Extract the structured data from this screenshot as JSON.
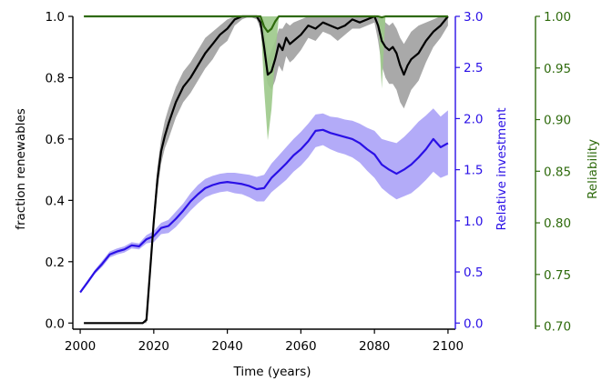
{
  "chart_data": {
    "type": "line",
    "xlabel": "Time (years)",
    "ylabel_left": "fraction renewables",
    "ylabel_right1": "Relative investment",
    "ylabel_right2": "Reliability",
    "xlim": [
      1998,
      2102
    ],
    "ylim_left": [
      -0.02,
      1.0
    ],
    "ylim_right1": [
      -0.06,
      3.0
    ],
    "ylim_right2": [
      0.697,
      1.0
    ],
    "x_ticks": [
      2000,
      2020,
      2040,
      2060,
      2080,
      2100
    ],
    "y_ticks_left": [
      0.0,
      0.2,
      0.4,
      0.6,
      0.8,
      1.0
    ],
    "y_ticks_right1": [
      0.0,
      0.5,
      1.0,
      1.5,
      2.0,
      2.5,
      3.0
    ],
    "y_ticks_right2": [
      0.7,
      0.75,
      0.8,
      0.85,
      0.9,
      0.95,
      1.0
    ],
    "x_tick_labels": [
      "2000",
      "2020",
      "2040",
      "2060",
      "2080",
      "2100"
    ],
    "y_tick_labels_left": [
      "0.0",
      "0.2",
      "0.4",
      "0.6",
      "0.8",
      "1.0"
    ],
    "y_tick_labels_right1": [
      "0.0",
      "0.5",
      "1.0",
      "1.5",
      "2.0",
      "2.5",
      "3.0"
    ],
    "y_tick_labels_right2": [
      "0.70",
      "0.75",
      "0.80",
      "0.85",
      "0.90",
      "0.95",
      "1.00"
    ],
    "colors": {
      "renewables": "#000000",
      "investment": "#2a10e6",
      "investment_band": "#a69cf7",
      "renewables_band": "#8c8c8c",
      "reliability": "#2e6a0c",
      "reliability_band": "#9cc98a"
    },
    "series": [
      {
        "axis": "left",
        "x": [
          2001,
          2017,
          2018,
          2019,
          2020,
          2021,
          2022,
          2023,
          2024,
          2026,
          2028,
          2030,
          2032,
          2034,
          2036,
          2038,
          2040,
          2042,
          2044,
          2046,
          2048,
          2049,
          2050,
          2051,
          2052,
          2053,
          2054,
          2055,
          2056,
          2057,
          2058,
          2060,
          2062,
          2064,
          2066,
          2068,
          2070,
          2072,
          2074,
          2076,
          2078,
          2080,
          2081,
          2082,
          2083,
          2084,
          2085,
          2086,
          2087,
          2088,
          2089,
          2090,
          2092,
          2094,
          2096,
          2098,
          2100
        ],
        "values": [
          0.0,
          0.0,
          0.01,
          0.17,
          0.33,
          0.47,
          0.56,
          0.61,
          0.65,
          0.72,
          0.77,
          0.8,
          0.84,
          0.88,
          0.91,
          0.94,
          0.96,
          0.99,
          1.0,
          1.0,
          1.0,
          0.98,
          0.9,
          0.81,
          0.82,
          0.86,
          0.91,
          0.89,
          0.93,
          0.91,
          0.92,
          0.94,
          0.97,
          0.96,
          0.98,
          0.97,
          0.96,
          0.97,
          0.99,
          0.98,
          0.99,
          1.0,
          0.97,
          0.92,
          0.9,
          0.89,
          0.9,
          0.88,
          0.84,
          0.81,
          0.84,
          0.86,
          0.88,
          0.92,
          0.95,
          0.97,
          1.0
        ],
        "upper": [
          0.0,
          0.0,
          0.02,
          0.19,
          0.36,
          0.51,
          0.6,
          0.66,
          0.7,
          0.77,
          0.82,
          0.85,
          0.89,
          0.93,
          0.95,
          0.97,
          0.99,
          1.0,
          1.0,
          1.0,
          1.0,
          1.0,
          0.96,
          0.86,
          0.89,
          0.92,
          0.96,
          0.96,
          0.98,
          0.97,
          0.98,
          0.99,
          1.0,
          1.0,
          1.0,
          1.0,
          1.0,
          1.0,
          1.0,
          1.0,
          1.0,
          1.0,
          1.0,
          1.0,
          0.98,
          0.97,
          0.98,
          0.96,
          0.93,
          0.91,
          0.93,
          0.95,
          0.97,
          0.98,
          0.99,
          1.0,
          1.0
        ],
        "lower": [
          0.0,
          0.0,
          0.0,
          0.15,
          0.3,
          0.43,
          0.52,
          0.57,
          0.6,
          0.67,
          0.72,
          0.75,
          0.79,
          0.83,
          0.86,
          0.9,
          0.92,
          0.97,
          0.99,
          1.0,
          0.99,
          0.96,
          0.84,
          0.78,
          0.76,
          0.79,
          0.84,
          0.82,
          0.87,
          0.85,
          0.86,
          0.89,
          0.93,
          0.92,
          0.95,
          0.94,
          0.92,
          0.94,
          0.96,
          0.96,
          0.97,
          0.98,
          0.92,
          0.84,
          0.8,
          0.78,
          0.78,
          0.76,
          0.72,
          0.7,
          0.73,
          0.76,
          0.79,
          0.85,
          0.9,
          0.93,
          0.97
        ]
      },
      {
        "axis": "right1",
        "x": [
          2000,
          2002,
          2004,
          2006,
          2008,
          2010,
          2012,
          2014,
          2016,
          2018,
          2020,
          2022,
          2024,
          2026,
          2028,
          2030,
          2032,
          2034,
          2036,
          2038,
          2040,
          2042,
          2044,
          2046,
          2048,
          2050,
          2052,
          2054,
          2056,
          2058,
          2060,
          2062,
          2064,
          2066,
          2068,
          2070,
          2072,
          2074,
          2076,
          2078,
          2080,
          2082,
          2084,
          2086,
          2088,
          2090,
          2092,
          2094,
          2096,
          2098,
          2100
        ],
        "values": [
          0.3,
          0.4,
          0.5,
          0.58,
          0.67,
          0.7,
          0.72,
          0.76,
          0.75,
          0.82,
          0.85,
          0.93,
          0.95,
          1.02,
          1.1,
          1.19,
          1.26,
          1.32,
          1.35,
          1.37,
          1.38,
          1.37,
          1.36,
          1.34,
          1.31,
          1.32,
          1.42,
          1.49,
          1.56,
          1.64,
          1.7,
          1.78,
          1.88,
          1.89,
          1.86,
          1.84,
          1.82,
          1.8,
          1.76,
          1.7,
          1.65,
          1.55,
          1.5,
          1.46,
          1.5,
          1.55,
          1.62,
          1.7,
          1.8,
          1.72,
          1.76
        ],
        "upper": [
          0.3,
          0.41,
          0.52,
          0.61,
          0.7,
          0.73,
          0.75,
          0.79,
          0.78,
          0.86,
          0.9,
          0.98,
          1.01,
          1.09,
          1.17,
          1.27,
          1.35,
          1.41,
          1.44,
          1.46,
          1.47,
          1.47,
          1.46,
          1.45,
          1.43,
          1.45,
          1.56,
          1.64,
          1.72,
          1.8,
          1.87,
          1.95,
          2.04,
          2.05,
          2.02,
          2.01,
          1.99,
          1.98,
          1.95,
          1.91,
          1.88,
          1.8,
          1.78,
          1.76,
          1.82,
          1.89,
          1.97,
          2.03,
          2.1,
          2.02,
          2.08
        ],
        "lower": [
          0.29,
          0.38,
          0.48,
          0.55,
          0.64,
          0.67,
          0.69,
          0.73,
          0.72,
          0.78,
          0.79,
          0.87,
          0.88,
          0.94,
          1.02,
          1.1,
          1.17,
          1.23,
          1.26,
          1.28,
          1.29,
          1.27,
          1.26,
          1.23,
          1.19,
          1.19,
          1.28,
          1.34,
          1.4,
          1.48,
          1.54,
          1.62,
          1.72,
          1.74,
          1.7,
          1.67,
          1.65,
          1.62,
          1.57,
          1.49,
          1.42,
          1.32,
          1.26,
          1.21,
          1.24,
          1.27,
          1.33,
          1.4,
          1.48,
          1.42,
          1.45
        ]
      },
      {
        "axis": "right2",
        "x": [
          2001,
          2049,
          2050,
          2051,
          2052,
          2053,
          2054,
          2081,
          2082,
          2083,
          2100
        ],
        "values": [
          1.0,
          1.0,
          0.99,
          0.985,
          0.988,
          0.995,
          1.0,
          1.0,
          0.999,
          1.0,
          1.0
        ],
        "upper": [
          1.0,
          1.0,
          1.0,
          1.0,
          1.0,
          1.0,
          1.0,
          1.0,
          1.0,
          1.0,
          1.0
        ],
        "lower": [
          1.0,
          1.0,
          0.93,
          0.88,
          0.91,
          0.96,
          1.0,
          1.0,
          0.93,
          1.0,
          1.0
        ]
      }
    ]
  }
}
